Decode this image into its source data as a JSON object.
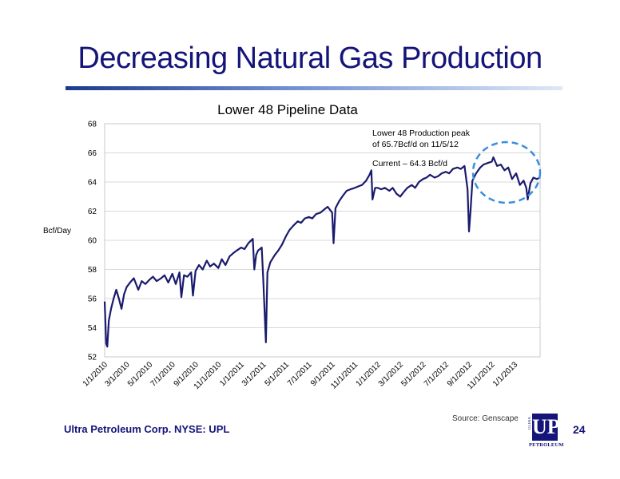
{
  "slide": {
    "title": "Decreasing Natural Gas Production",
    "footer_company": "Ultra Petroleum Corp. NYSE: UPL",
    "source": "Source: Genscape",
    "page_number": "24",
    "logo": {
      "main": "UP",
      "side": "ULTRA",
      "word": "PETROLEUM"
    }
  },
  "colors": {
    "title": "#14147a",
    "series": "#1a1a6e",
    "highlight_circle": "#3a8ee0"
  },
  "chart_data": {
    "type": "line",
    "title": "Lower 48 Pipeline Data",
    "ylabel": "Bcf/Day",
    "xlabel": "",
    "ylim": [
      52,
      68
    ],
    "yticks": [
      52,
      54,
      56,
      58,
      60,
      62,
      64,
      66,
      68
    ],
    "xlim": [
      "2010-01-01",
      "2013-03-10"
    ],
    "xtick_labels": [
      "1/1/2010",
      "3/1/2010",
      "5/1/2010",
      "7/1/2010",
      "9/1/2010",
      "11/1/2010",
      "1/1/2011",
      "3/1/2011",
      "5/1/2011",
      "7/1/2011",
      "9/1/2011",
      "11/1/2011",
      "1/1/2012",
      "3/1/2012",
      "5/1/2012",
      "7/1/2012",
      "9/1/2012",
      "11/1/2012",
      "1/1/2013"
    ],
    "grid": true,
    "series": [
      {
        "values": [
          [
            "2010-01-01",
            55.8
          ],
          [
            "2010-01-05",
            52.9
          ],
          [
            "2010-01-08",
            52.7
          ],
          [
            "2010-01-12",
            54.5
          ],
          [
            "2010-01-18",
            55.3
          ],
          [
            "2010-01-25",
            56.0
          ],
          [
            "2010-02-01",
            56.6
          ],
          [
            "2010-02-08",
            56.0
          ],
          [
            "2010-02-15",
            55.3
          ],
          [
            "2010-02-22",
            56.3
          ],
          [
            "2010-03-01",
            56.8
          ],
          [
            "2010-03-10",
            57.1
          ],
          [
            "2010-03-20",
            57.4
          ],
          [
            "2010-04-01",
            56.6
          ],
          [
            "2010-04-10",
            57.2
          ],
          [
            "2010-04-20",
            57.0
          ],
          [
            "2010-05-01",
            57.3
          ],
          [
            "2010-05-10",
            57.5
          ],
          [
            "2010-05-20",
            57.2
          ],
          [
            "2010-06-01",
            57.4
          ],
          [
            "2010-06-10",
            57.6
          ],
          [
            "2010-06-20",
            57.1
          ],
          [
            "2010-07-01",
            57.7
          ],
          [
            "2010-07-10",
            57.0
          ],
          [
            "2010-07-20",
            57.8
          ],
          [
            "2010-07-25",
            56.1
          ],
          [
            "2010-08-01",
            57.6
          ],
          [
            "2010-08-10",
            57.5
          ],
          [
            "2010-08-20",
            57.8
          ],
          [
            "2010-08-25",
            56.2
          ],
          [
            "2010-09-01",
            57.9
          ],
          [
            "2010-09-10",
            58.3
          ],
          [
            "2010-09-20",
            58.0
          ],
          [
            "2010-10-01",
            58.6
          ],
          [
            "2010-10-10",
            58.2
          ],
          [
            "2010-10-20",
            58.4
          ],
          [
            "2010-11-01",
            58.1
          ],
          [
            "2010-11-10",
            58.7
          ],
          [
            "2010-11-20",
            58.3
          ],
          [
            "2010-12-01",
            58.9
          ],
          [
            "2010-12-10",
            59.1
          ],
          [
            "2010-12-20",
            59.3
          ],
          [
            "2011-01-01",
            59.5
          ],
          [
            "2011-01-10",
            59.4
          ],
          [
            "2011-01-20",
            59.8
          ],
          [
            "2011-02-01",
            60.1
          ],
          [
            "2011-02-05",
            58.0
          ],
          [
            "2011-02-10",
            59.0
          ],
          [
            "2011-02-15",
            59.3
          ],
          [
            "2011-02-25",
            59.5
          ],
          [
            "2011-03-01",
            57.3
          ],
          [
            "2011-03-08",
            53.0
          ],
          [
            "2011-03-12",
            57.8
          ],
          [
            "2011-03-20",
            58.5
          ],
          [
            "2011-04-01",
            59.0
          ],
          [
            "2011-04-10",
            59.3
          ],
          [
            "2011-04-20",
            59.7
          ],
          [
            "2011-05-01",
            60.3
          ],
          [
            "2011-05-10",
            60.7
          ],
          [
            "2011-05-20",
            61.0
          ],
          [
            "2011-06-01",
            61.3
          ],
          [
            "2011-06-10",
            61.2
          ],
          [
            "2011-06-20",
            61.5
          ],
          [
            "2011-07-01",
            61.6
          ],
          [
            "2011-07-10",
            61.5
          ],
          [
            "2011-07-20",
            61.8
          ],
          [
            "2011-08-01",
            61.9
          ],
          [
            "2011-08-10",
            62.1
          ],
          [
            "2011-08-20",
            62.3
          ],
          [
            "2011-09-01",
            61.9
          ],
          [
            "2011-09-05",
            59.8
          ],
          [
            "2011-09-10",
            62.2
          ],
          [
            "2011-09-20",
            62.7
          ],
          [
            "2011-10-01",
            63.1
          ],
          [
            "2011-10-10",
            63.4
          ],
          [
            "2011-10-20",
            63.5
          ],
          [
            "2011-11-01",
            63.6
          ],
          [
            "2011-11-10",
            63.7
          ],
          [
            "2011-11-20",
            63.8
          ],
          [
            "2011-12-01",
            64.1
          ],
          [
            "2011-12-10",
            64.5
          ],
          [
            "2011-12-15",
            64.8
          ],
          [
            "2011-12-18",
            62.8
          ],
          [
            "2011-12-25",
            63.6
          ],
          [
            "2012-01-01",
            63.6
          ],
          [
            "2012-01-10",
            63.5
          ],
          [
            "2012-01-20",
            63.6
          ],
          [
            "2012-02-01",
            63.4
          ],
          [
            "2012-02-10",
            63.6
          ],
          [
            "2012-02-20",
            63.2
          ],
          [
            "2012-03-01",
            63.0
          ],
          [
            "2012-03-10",
            63.3
          ],
          [
            "2012-03-20",
            63.6
          ],
          [
            "2012-04-01",
            63.8
          ],
          [
            "2012-04-10",
            63.6
          ],
          [
            "2012-04-20",
            64.0
          ],
          [
            "2012-05-01",
            64.2
          ],
          [
            "2012-05-10",
            64.3
          ],
          [
            "2012-05-20",
            64.5
          ],
          [
            "2012-06-01",
            64.3
          ],
          [
            "2012-06-10",
            64.4
          ],
          [
            "2012-06-20",
            64.6
          ],
          [
            "2012-07-01",
            64.7
          ],
          [
            "2012-07-10",
            64.6
          ],
          [
            "2012-07-20",
            64.9
          ],
          [
            "2012-08-01",
            65.0
          ],
          [
            "2012-08-10",
            64.9
          ],
          [
            "2012-08-20",
            65.1
          ],
          [
            "2012-08-28",
            63.5
          ],
          [
            "2012-09-01",
            60.6
          ],
          [
            "2012-09-05",
            62.0
          ],
          [
            "2012-09-10",
            64.1
          ],
          [
            "2012-09-20",
            64.6
          ],
          [
            "2012-10-01",
            65.0
          ],
          [
            "2012-10-10",
            65.2
          ],
          [
            "2012-10-20",
            65.3
          ],
          [
            "2012-11-01",
            65.4
          ],
          [
            "2012-11-05",
            65.7
          ],
          [
            "2012-11-15",
            65.1
          ],
          [
            "2012-11-25",
            65.2
          ],
          [
            "2012-12-05",
            64.8
          ],
          [
            "2012-12-15",
            65.0
          ],
          [
            "2012-12-25",
            64.2
          ],
          [
            "2013-01-05",
            64.6
          ],
          [
            "2013-01-15",
            63.8
          ],
          [
            "2013-01-25",
            64.1
          ],
          [
            "2013-02-01",
            63.6
          ],
          [
            "2013-02-05",
            62.8
          ],
          [
            "2013-02-12",
            63.9
          ],
          [
            "2013-02-20",
            64.3
          ],
          [
            "2013-03-01",
            64.2
          ],
          [
            "2013-03-10",
            64.3
          ]
        ]
      }
    ],
    "annotations": [
      {
        "text_line1": "Lower 48 Production peak",
        "text_line2": "of 65.7Bcf/d on 11/5/12"
      },
      {
        "text": "Current – 64.3 Bcf/d"
      }
    ]
  }
}
